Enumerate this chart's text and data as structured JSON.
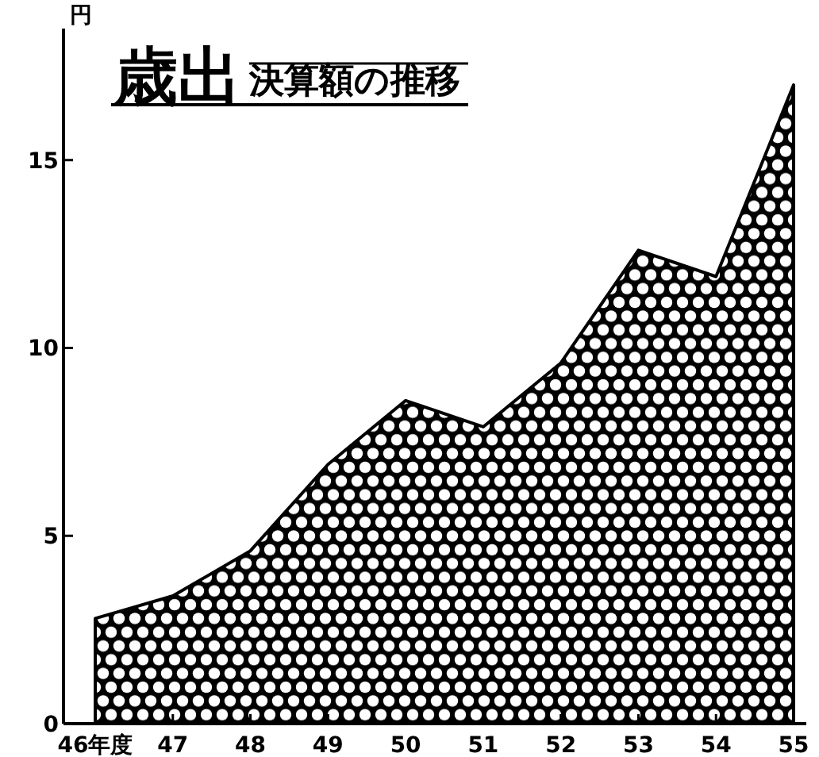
{
  "chart_data": {
    "type": "area",
    "title": "歳出",
    "subtitle": "決算額の推移",
    "ylabel": "円",
    "categories": [
      "46年度",
      "47",
      "48",
      "49",
      "50",
      "51",
      "52",
      "53",
      "54",
      "55"
    ],
    "series": [
      {
        "color": "#000000",
        "values": [
          2.8,
          3.4,
          4.6,
          6.9,
          8.6,
          7.9,
          9.6,
          12.6,
          11.9,
          17.0
        ]
      }
    ],
    "ylim": [
      0,
      18.5
    ],
    "yticks": [
      0,
      5,
      10,
      15
    ],
    "grid": false
  }
}
